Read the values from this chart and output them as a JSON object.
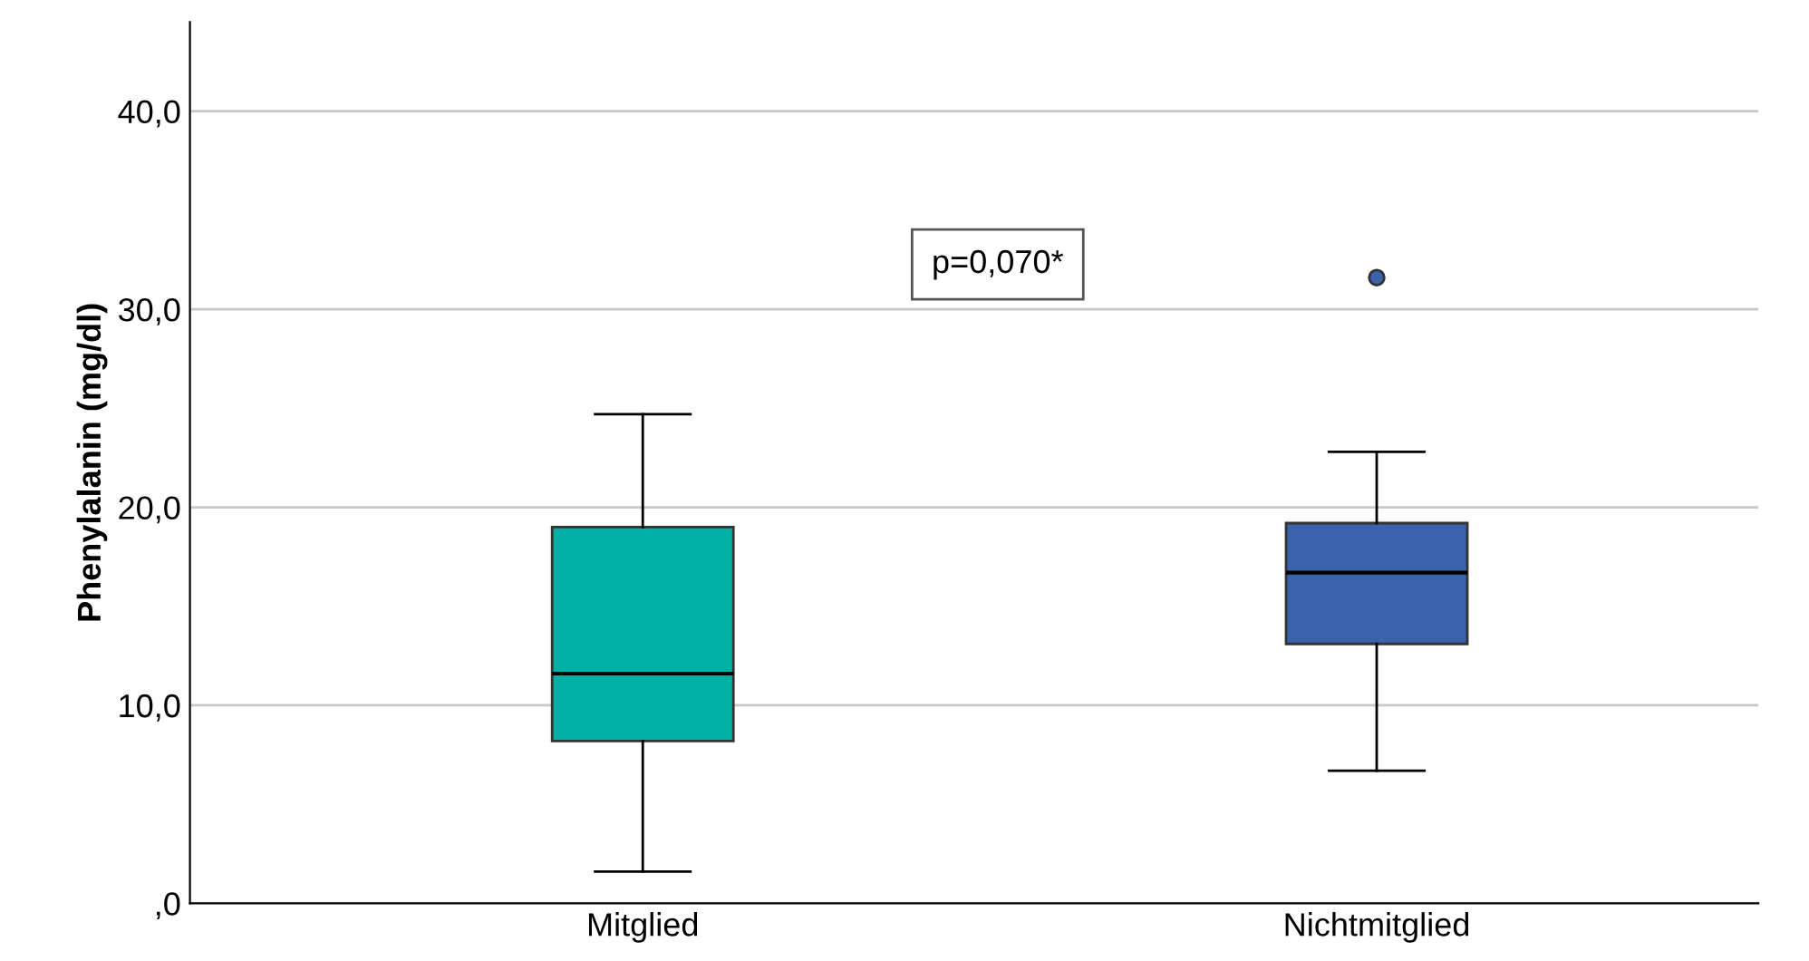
{
  "chart_data": {
    "type": "box",
    "ylabel": "Phenylalanin (mg/dl)",
    "categories": [
      "Mitglied",
      "Nichtmitglied"
    ],
    "colors": [
      "#00b2a5",
      "#3a62ad"
    ],
    "boxes": [
      {
        "low": 1.6,
        "q1": 8.2,
        "median": 11.6,
        "q3": 19.0,
        "high": 24.7
      },
      {
        "low": 6.7,
        "q1": 13.1,
        "median": 16.7,
        "q3": 19.2,
        "high": 22.8,
        "outliers": [
          31.6
        ]
      }
    ],
    "ylim": [
      0,
      44.5
    ],
    "yticks": [
      {
        "value": 0,
        "label": ",0"
      },
      {
        "value": 10,
        "label": "10,0"
      },
      {
        "value": 20,
        "label": "20,0"
      },
      {
        "value": 30,
        "label": "30,0"
      },
      {
        "value": 40,
        "label": "40,0"
      }
    ],
    "grid": "y",
    "annotations": [
      "p=0,070*"
    ]
  }
}
